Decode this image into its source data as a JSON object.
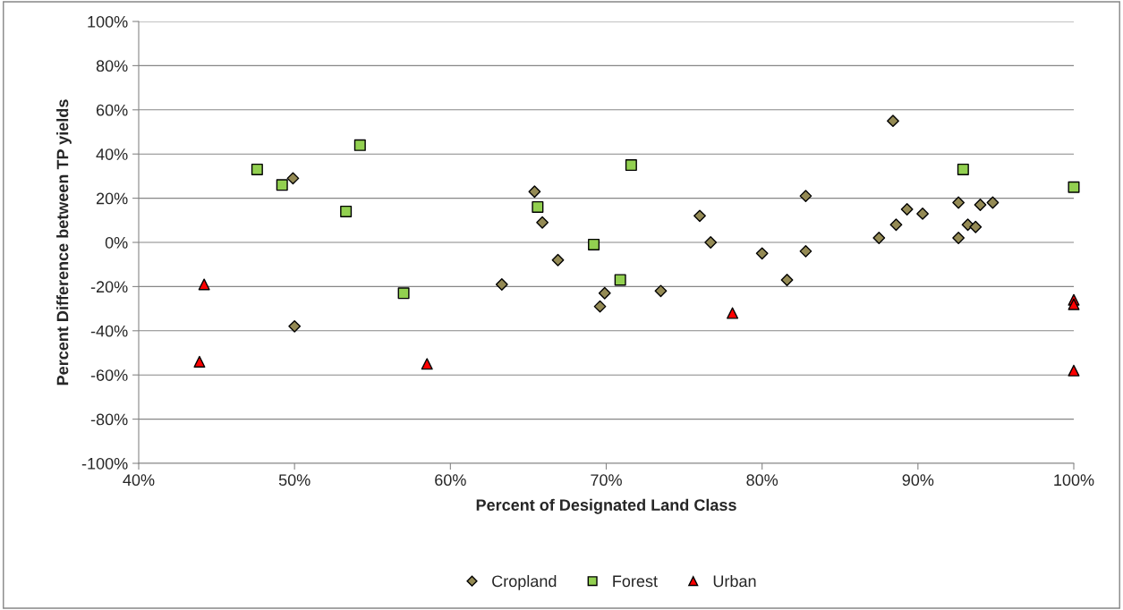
{
  "chart_data": {
    "type": "scatter",
    "xlabel": "Percent of Designated Land Class",
    "ylabel": "Percent Difference between TP yields",
    "xlim": [
      40,
      100
    ],
    "xticks": [
      {
        "value": 40,
        "label": "40%"
      },
      {
        "value": 50,
        "label": "50%"
      },
      {
        "value": 60,
        "label": "60%"
      },
      {
        "value": 70,
        "label": "70%"
      },
      {
        "value": 80,
        "label": "80%"
      },
      {
        "value": 90,
        "label": "90%"
      },
      {
        "value": 100,
        "label": "100%"
      }
    ],
    "ylim": [
      -100,
      100
    ],
    "yticks": [
      {
        "value": -100,
        "label": "-100%"
      },
      {
        "value": -80,
        "label": "-80%"
      },
      {
        "value": -60,
        "label": "-60%"
      },
      {
        "value": -40,
        "label": "-40%"
      },
      {
        "value": -20,
        "label": "-20%"
      },
      {
        "value": 0,
        "label": "0%"
      },
      {
        "value": 20,
        "label": "20%"
      },
      {
        "value": 40,
        "label": "40%"
      },
      {
        "value": 60,
        "label": "60%"
      },
      {
        "value": 80,
        "label": "80%"
      },
      {
        "value": 100,
        "label": "100%"
      }
    ],
    "grid": "y",
    "legend": "bottom",
    "series": [
      {
        "name": "Cropland",
        "color": "#948a54",
        "marker": "diamond",
        "x": [
          49.9,
          50,
          63.3,
          65.4,
          65.9,
          66.9,
          69.6,
          69.9,
          73.5,
          76.0,
          76.7,
          80,
          81.6,
          82.8,
          82.8,
          87.5,
          88.4,
          88.6,
          89.3,
          90.3,
          92.6,
          92.6,
          93.2,
          93.7,
          94.0,
          94.8
        ],
        "values": [
          29,
          -38,
          -19,
          23,
          9,
          -8,
          -29,
          -23,
          -22,
          12,
          0,
          -5,
          -17,
          21,
          -4,
          2,
          55,
          8,
          15,
          13,
          18,
          2,
          8,
          7,
          17,
          18
        ]
      },
      {
        "name": "Forest",
        "color": "#92d050",
        "marker": "square",
        "x": [
          47.6,
          49.2,
          53.3,
          54.2,
          57.0,
          65.6,
          69.2,
          70.9,
          71.6,
          92.9,
          100
        ],
        "values": [
          33,
          26,
          14,
          44,
          -23,
          16,
          -1,
          -17,
          35,
          33,
          25
        ]
      },
      {
        "name": "Urban",
        "color": "#ff0000",
        "marker": "triangle",
        "x": [
          44.2,
          43.9,
          58.5,
          78.1,
          100,
          100,
          100
        ],
        "values": [
          -19,
          -54,
          -55,
          -32,
          -26,
          -28,
          -58
        ]
      }
    ]
  }
}
